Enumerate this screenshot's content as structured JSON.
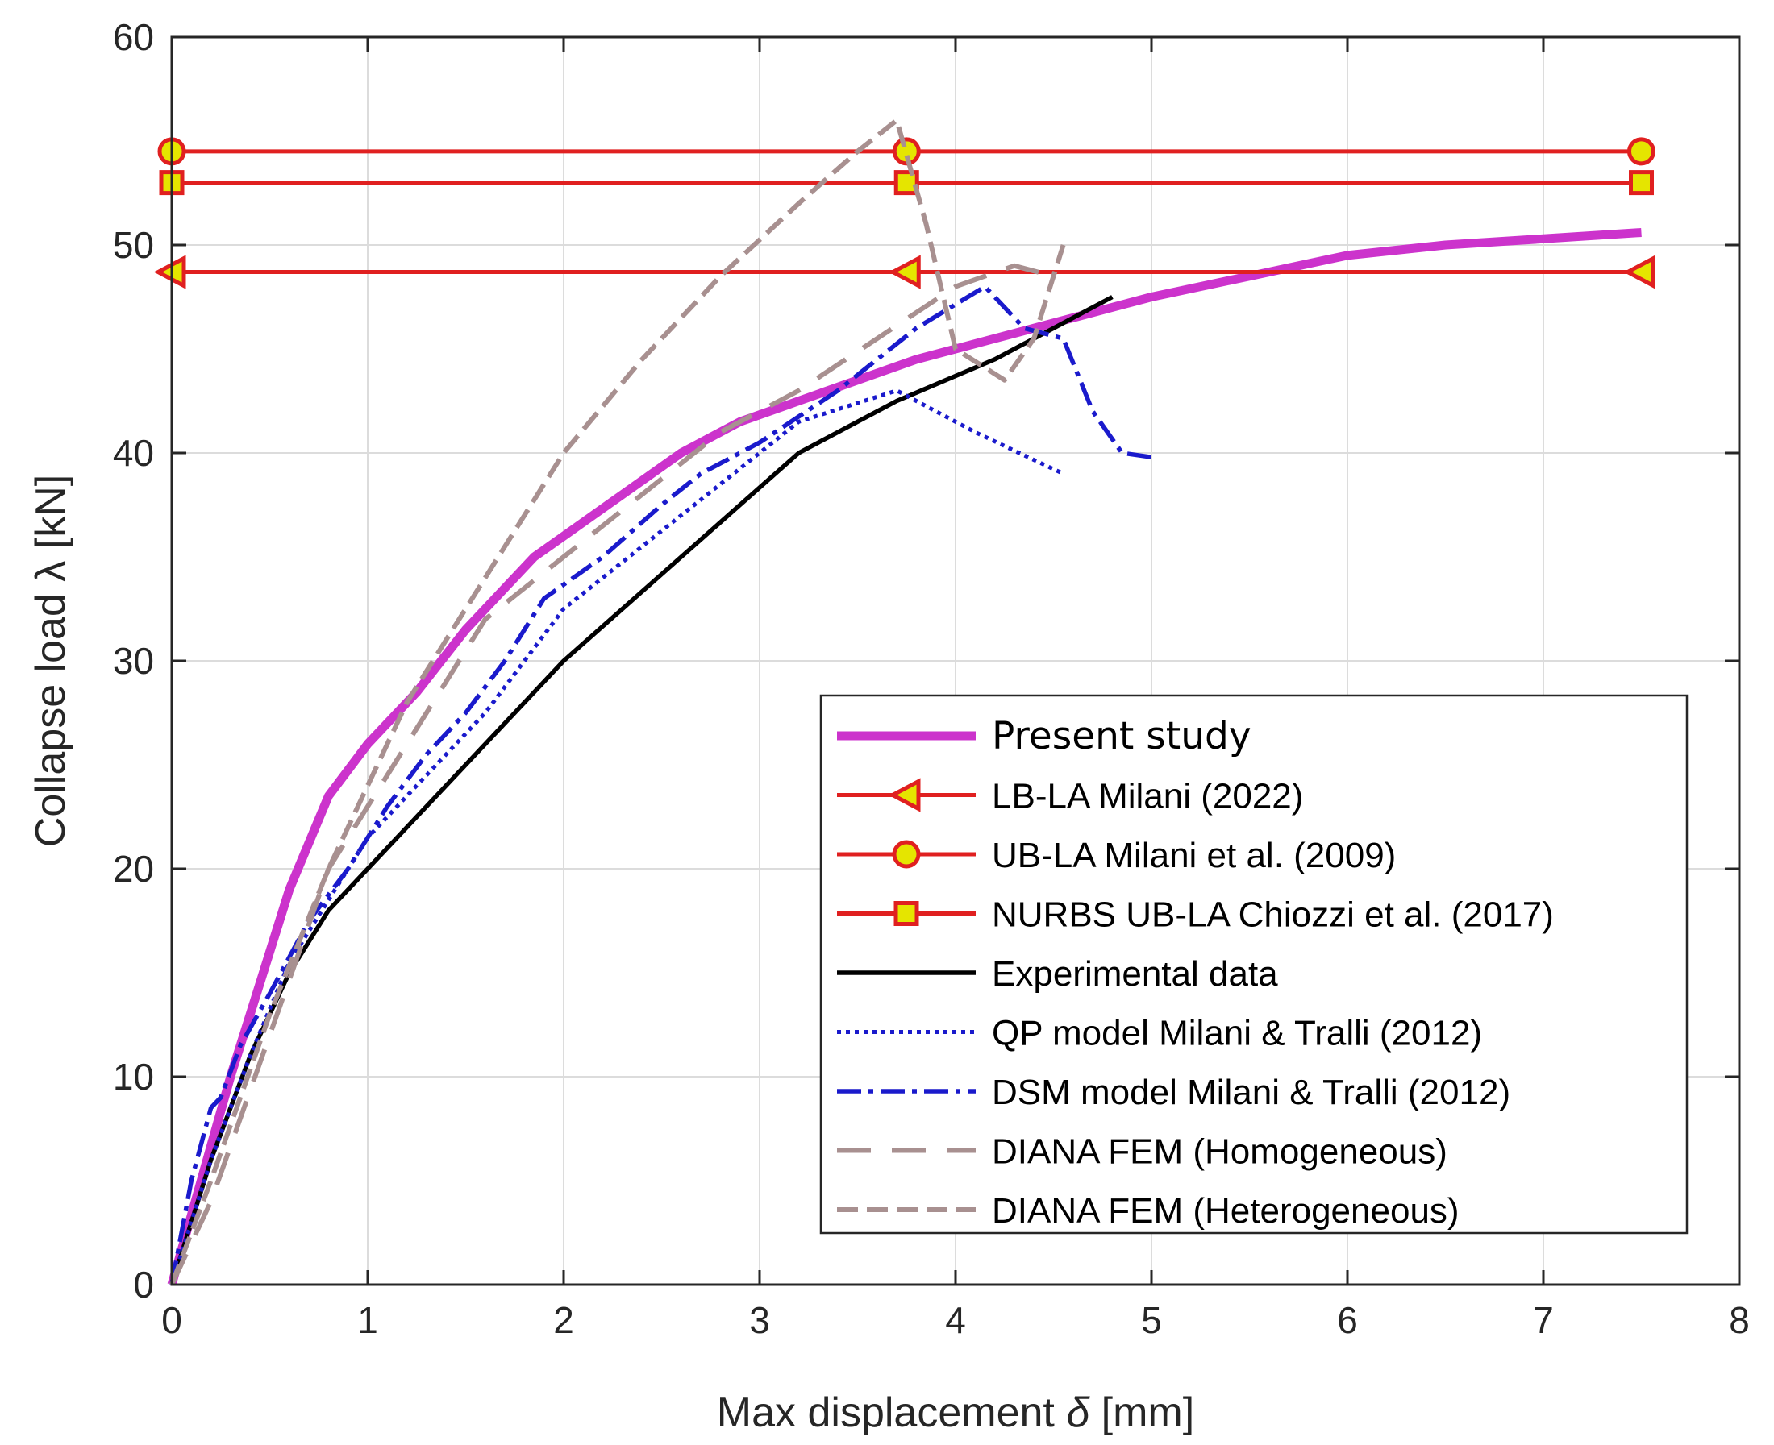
{
  "chart_data": {
    "type": "line",
    "xlabel_main": "Max displacement ",
    "xlabel_symbol": "δ",
    "xlabel_unit": " [mm]",
    "ylabel_main": "Collapse load ",
    "ylabel_symbol": "λ",
    "ylabel_unit": " [kN]",
    "xlim": [
      0,
      8
    ],
    "ylim": [
      0,
      60
    ],
    "xticks": [
      "0",
      "1",
      "2",
      "3",
      "4",
      "5",
      "6",
      "7",
      "8"
    ],
    "yticks": [
      "0",
      "10",
      "20",
      "30",
      "40",
      "50",
      "60"
    ],
    "grid": true,
    "legend_position": "bottom-right",
    "series": [
      {
        "name": "Present study",
        "color": "#cc33cc",
        "style": "solid-thick",
        "x": [
          0,
          0.15,
          0.3,
          0.45,
          0.6,
          0.8,
          1.0,
          1.25,
          1.5,
          1.85,
          2.0,
          2.3,
          2.6,
          2.9,
          3.2,
          3.5,
          3.8,
          4.2,
          4.6,
          5.0,
          5.5,
          6.0,
          6.5,
          7.0,
          7.5
        ],
        "y": [
          0,
          5,
          10,
          14.5,
          19,
          23.5,
          26,
          28.5,
          31.5,
          35,
          36,
          38,
          40,
          41.5,
          42.5,
          43.5,
          44.5,
          45.5,
          46.5,
          47.5,
          48.5,
          49.5,
          50,
          50.3,
          50.6
        ]
      },
      {
        "name": "LB-LA Milani (2022)",
        "color": "#e02020",
        "marker": "left-triangle",
        "x": [
          0,
          3.75,
          7.5
        ],
        "y": [
          48.7,
          48.7,
          48.7
        ]
      },
      {
        "name": "UB-LA Milani et al. (2009)",
        "color": "#e02020",
        "marker": "circle",
        "x": [
          0,
          3.75,
          7.5
        ],
        "y": [
          54.5,
          54.5,
          54.5
        ]
      },
      {
        "name": "NURBS UB-LA Chiozzi et al. (2017)",
        "color": "#e02020",
        "marker": "square",
        "x": [
          0,
          3.75,
          7.5
        ],
        "y": [
          53,
          53,
          53
        ]
      },
      {
        "name": "Experimental data",
        "color": "#000000",
        "style": "solid",
        "x": [
          0,
          0.2,
          0.4,
          0.6,
          0.8,
          1.0,
          1.5,
          2.0,
          2.6,
          3.2,
          3.7,
          4.2,
          4.8
        ],
        "y": [
          0,
          6,
          11,
          15,
          18,
          20,
          25,
          30,
          35,
          40,
          42.5,
          44.5,
          47.5
        ]
      },
      {
        "name": "QP model Milani & Tralli (2012)",
        "color": "#1a1acc",
        "style": "dotted",
        "x": [
          0,
          0.2,
          0.4,
          0.6,
          0.8,
          1.0,
          1.3,
          1.6,
          2.0,
          2.4,
          2.8,
          3.2,
          3.7,
          4.1,
          4.55
        ],
        "y": [
          0,
          6,
          11,
          15.5,
          18.5,
          21.5,
          24.5,
          27.5,
          32.5,
          35.5,
          38.5,
          41.5,
          43,
          41,
          39
        ]
      },
      {
        "name": "DSM model Milani & Tralli (2012)",
        "color": "#1a1acc",
        "style": "dashdot",
        "x": [
          0,
          0.1,
          0.2,
          0.25,
          0.35,
          0.5,
          0.7,
          0.9,
          1.1,
          1.3,
          1.5,
          1.7,
          1.9,
          2.2,
          2.5,
          2.7,
          3.0,
          3.4,
          3.8,
          4.15,
          4.35,
          4.55,
          4.7,
          4.85,
          5.0
        ],
        "y": [
          0,
          5,
          8.5,
          9,
          11.5,
          14,
          17.5,
          20,
          23,
          25.5,
          27.5,
          30,
          33,
          35,
          37.5,
          39,
          40.5,
          43,
          46,
          48,
          46,
          45.5,
          42,
          40,
          39.8
        ]
      },
      {
        "name": "DIANA FEM (Homogeneous)",
        "color": "#a89090",
        "style": "dashed",
        "x": [
          0,
          0.2,
          0.5,
          0.8,
          1.2,
          1.6,
          2.0,
          2.4,
          2.8,
          3.2,
          3.6,
          4.0,
          4.3,
          4.5
        ],
        "y": [
          0,
          4,
          12,
          20,
          26,
          32,
          35,
          38,
          41,
          43,
          45.5,
          48,
          49,
          48.5
        ]
      },
      {
        "name": "DIANA FEM (Heterogeneous)",
        "color": "#a89090",
        "style": "dense-dashed",
        "x": [
          0,
          0.2,
          0.5,
          0.8,
          1.2,
          1.6,
          2.0,
          2.4,
          2.8,
          3.2,
          3.5,
          3.7,
          3.85,
          4.0,
          4.25,
          4.4,
          4.55
        ],
        "y": [
          0,
          5,
          13,
          20,
          28,
          34,
          40,
          44.5,
          48.5,
          52,
          54.5,
          56,
          51,
          45,
          43.5,
          45.5,
          50
        ]
      }
    ]
  }
}
